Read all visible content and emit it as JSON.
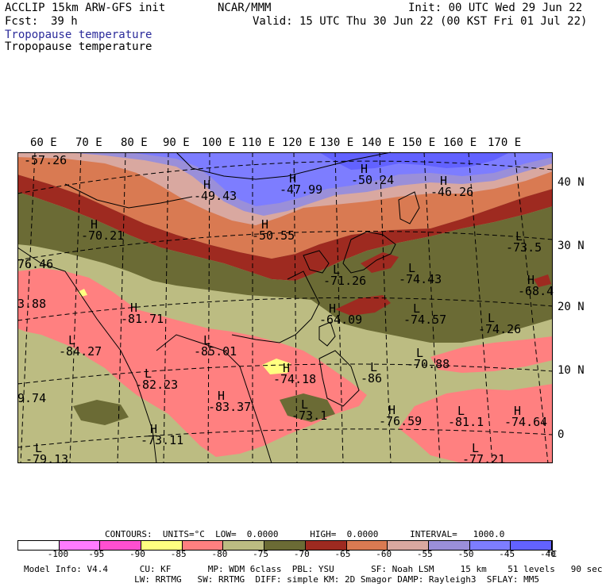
{
  "header": {
    "model": "ACCLIP 15km ARW-GFS init",
    "org": "NCAR/MMM",
    "init": "Init: 00 UTC Wed 29 Jun 22",
    "fcst_label": "Fcst:",
    "fcst_value": "39 h",
    "valid": "Valid: 15 UTC Thu 30 Jun 22 (00 KST Fri 01 Jul 22)",
    "field_title_1": "Tropopause temperature",
    "field_title_2": "Tropopause temperature"
  },
  "map": {
    "lon_labels": [
      "60 E",
      "70 E",
      "80 E",
      "90 E",
      "100 E",
      "110 E",
      "120 E",
      "130 E",
      "140 E",
      "150 E",
      "160 E",
      "170 E"
    ],
    "lat_labels": [
      "40 N",
      "30 N",
      "20 N",
      "10 N",
      "0"
    ],
    "extrema": [
      {
        "mark": "",
        "value": "-57.26"
      },
      {
        "mark": "H",
        "value": "-49.43"
      },
      {
        "mark": "H",
        "value": "-47.99"
      },
      {
        "mark": "H",
        "value": "-50.24"
      },
      {
        "mark": "H",
        "value": "-46.26"
      },
      {
        "mark": "H",
        "value": "-70.21"
      },
      {
        "mark": "H",
        "value": "-50.55"
      },
      {
        "mark": "L",
        "value": "-73.5"
      },
      {
        "mark": "",
        "value": "76.46"
      },
      {
        "mark": "L",
        "value": "-71.26"
      },
      {
        "mark": "L",
        "value": "-74.43"
      },
      {
        "mark": "H",
        "value": "-68.4"
      },
      {
        "mark": "",
        "value": "3.88"
      },
      {
        "mark": "H",
        "value": "-81.71"
      },
      {
        "mark": "H",
        "value": "-64.09"
      },
      {
        "mark": "L",
        "value": "-74.57"
      },
      {
        "mark": "L",
        "value": "-74.26"
      },
      {
        "mark": "L",
        "value": "-84.27"
      },
      {
        "mark": "L",
        "value": "-85.01"
      },
      {
        "mark": "H",
        "value": "-74.18"
      },
      {
        "mark": "L",
        "value": "-70.88"
      },
      {
        "mark": "L",
        "value": "-86"
      },
      {
        "mark": "L",
        "value": "-82.23"
      },
      {
        "mark": "",
        "value": "9.74"
      },
      {
        "mark": "H",
        "value": "-83.37"
      },
      {
        "mark": "L",
        "value": "-73.1"
      },
      {
        "mark": "H",
        "value": "-76.59"
      },
      {
        "mark": "L",
        "value": "-81.1"
      },
      {
        "mark": "H",
        "value": "-74.64"
      },
      {
        "mark": "H",
        "value": "-73.11"
      },
      {
        "mark": "L",
        "value": "-79.13"
      },
      {
        "mark": "L",
        "value": "-77.21"
      }
    ]
  },
  "legend": {
    "contours_line": "CONTOURS:  UNITS=°C  LOW=  0.0000      HIGH=  0.0000      INTERVAL=   1000.0",
    "tick_labels": [
      "-100",
      "-95",
      "-90",
      "-85",
      "-80",
      "-75",
      "-70",
      "-65",
      "-60",
      "-55",
      "-50",
      "-45",
      "-40"
    ],
    "unit": "°C",
    "colors": [
      "#ffffff",
      "#ff7bff",
      "#ff4fd0",
      "#ffff80",
      "#ff8080",
      "#bcbc82",
      "#6b6b35",
      "#9e2a20",
      "#d97a52",
      "#d9a8a0",
      "#9a8fd9",
      "#7d7dff",
      "#6262ff"
    ]
  },
  "footer": {
    "line1": "Model Info: V4.4      CU: KF       MP: WDM 6class  PBL: YSU       SF: Noah LSM     15 km    51 levels   90 sec",
    "line2": "                     LW: RRTMG   SW: RRTMG  DIFF: simple KM: 2D Smagor DAMP: Rayleigh3  SFLAY: MM5"
  }
}
